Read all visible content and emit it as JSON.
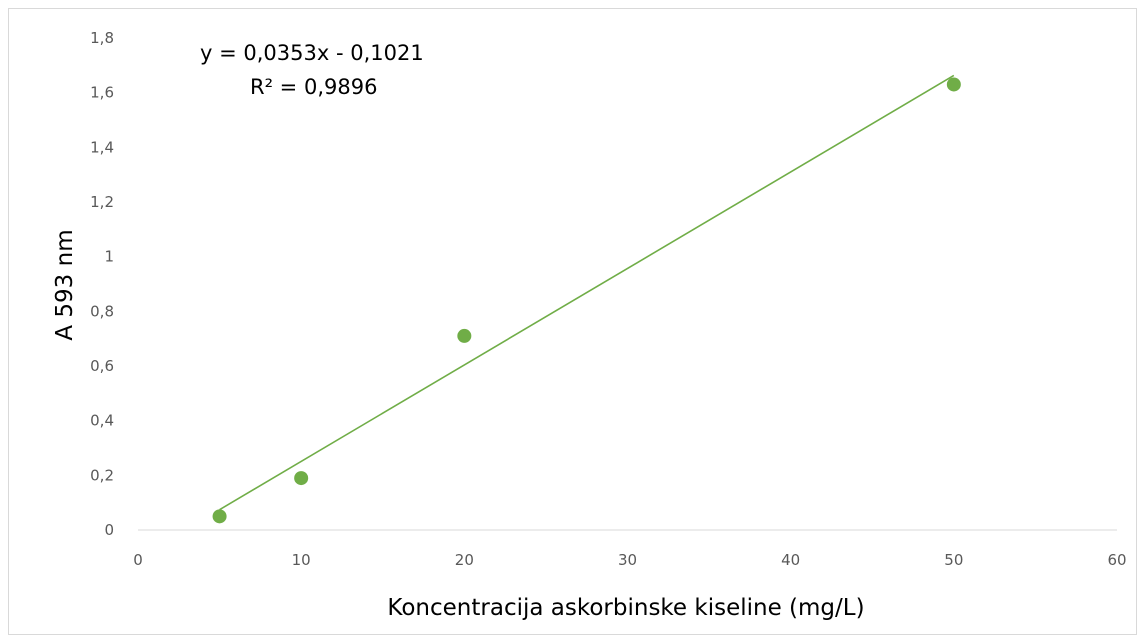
{
  "chart_data": {
    "type": "scatter",
    "xlabel": "Koncentracija askorbinske kiseline (mg/L)",
    "ylabel": "A 593 nm",
    "xlim": [
      0,
      60
    ],
    "ylim": [
      0,
      1.8
    ],
    "x_ticks": [
      "0",
      "10",
      "20",
      "30",
      "40",
      "50",
      "60"
    ],
    "y_ticks": [
      "0",
      "0,2",
      "0,4",
      "0,6",
      "0,8",
      "1",
      "1,2",
      "1,4",
      "1,6",
      "1,8"
    ],
    "series": [
      {
        "points": [
          {
            "x": 5,
            "y": 0.05
          },
          {
            "x": 10,
            "y": 0.19
          },
          {
            "x": 20,
            "y": 0.71
          },
          {
            "x": 50,
            "y": 1.63
          }
        ],
        "color": "#70ad47"
      }
    ],
    "trendline": {
      "type": "linear",
      "slope": 0.0353,
      "intercept": -0.1021,
      "x_range": [
        5,
        50
      ],
      "color": "#70ad47",
      "equation": "y = 0,0353x - 0,1021",
      "r_squared": "R² = 0,9896"
    },
    "grid": false,
    "legend": "none"
  }
}
